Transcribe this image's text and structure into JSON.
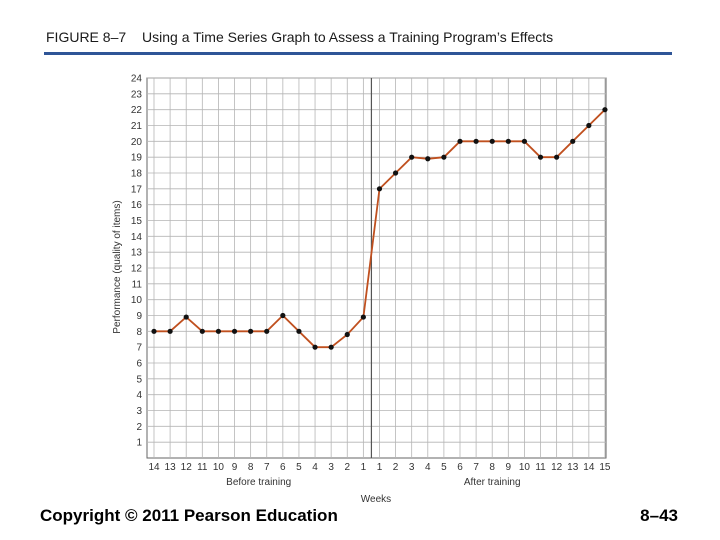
{
  "header": {
    "figure_label": "FIGURE 8–7",
    "title": "Using a Time Series Graph to Assess a Training Program’s Effects"
  },
  "footer": {
    "copyright": "Copyright © 2011 Pearson Education",
    "page_number": "8–43"
  },
  "colors": {
    "title_rule": "#2f5597",
    "line": "#c0501f",
    "marker": "#111111",
    "grid": "#b5b5b5"
  },
  "chart_data": {
    "type": "line",
    "ylabel": "Performance (quality of items)",
    "xlabel": "Weeks",
    "ylim": [
      0,
      24
    ],
    "y_ticks": [
      "1",
      "2",
      "3",
      "4",
      "5",
      "6",
      "7",
      "8",
      "9",
      "10",
      "11",
      "12",
      "13",
      "14",
      "15",
      "16",
      "17",
      "18",
      "19",
      "20",
      "21",
      "22",
      "23",
      "24"
    ],
    "grid": true,
    "groups": [
      {
        "label": "Before training",
        "categories": [
          "14",
          "13",
          "12",
          "11",
          "10",
          "9",
          "8",
          "7",
          "6",
          "5",
          "4",
          "3",
          "2",
          "1"
        ],
        "values": [
          8,
          8,
          8.9,
          8,
          8,
          8,
          8,
          8,
          9,
          8,
          7,
          7,
          7.8,
          8.9
        ]
      },
      {
        "label": "After training",
        "categories": [
          "1",
          "2",
          "3",
          "4",
          "5",
          "6",
          "7",
          "8",
          "9",
          "10",
          "11",
          "12",
          "13",
          "14",
          "15"
        ],
        "values": [
          17,
          18,
          19,
          18.9,
          19,
          20,
          20,
          20,
          20,
          20,
          19,
          19,
          20,
          21,
          22
        ]
      }
    ]
  }
}
